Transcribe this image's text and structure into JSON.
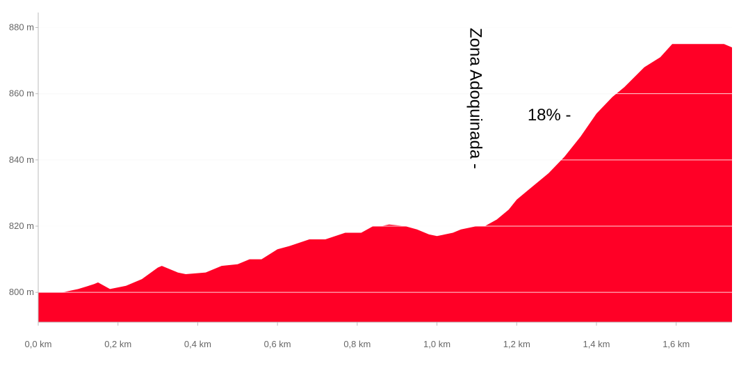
{
  "chart_data": {
    "type": "area",
    "title": "",
    "xlabel": "",
    "ylabel": "",
    "xlim": [
      0,
      1.74
    ],
    "ylim": [
      791,
      882
    ],
    "x_ticks": [
      0,
      0.2,
      0.4,
      0.6,
      0.8,
      1.0,
      1.2,
      1.4,
      1.6
    ],
    "x_tick_labels": [
      "0,0 km",
      "0,2 km",
      "0,4 km",
      "0,6 km",
      "0,8 km",
      "1,0 km",
      "1,2 km",
      "1,4 km",
      "1,6 km"
    ],
    "y_ticks": [
      800,
      820,
      840,
      860,
      880
    ],
    "y_tick_labels": [
      "800 m",
      "820 m",
      "840 m",
      "860 m",
      "880 m"
    ],
    "grid": true,
    "fill_color": "#ff0026",
    "grid_color": "#e8e8e8",
    "axis_color": "#bbbbbb",
    "series": [
      {
        "x": [
          0,
          0.06,
          0.1,
          0.14,
          0.15,
          0.18,
          0.22,
          0.26,
          0.3,
          0.31,
          0.35,
          0.37,
          0.42,
          0.46,
          0.5,
          0.53,
          0.56,
          0.6,
          0.63,
          0.68,
          0.72,
          0.77,
          0.81,
          0.84,
          0.86,
          0.88,
          0.92,
          0.95,
          0.98,
          1.0,
          1.02,
          1.04,
          1.06,
          1.1,
          1.12,
          1.15,
          1.18,
          1.2,
          1.24,
          1.28,
          1.32,
          1.36,
          1.4,
          1.44,
          1.47,
          1.52,
          1.56,
          1.59,
          1.65,
          1.7,
          1.72,
          1.74
        ],
        "y": [
          800,
          800,
          801,
          802.5,
          803,
          801,
          802,
          804,
          807.5,
          808,
          806,
          805.5,
          806,
          808,
          808.5,
          810,
          810,
          813,
          814,
          816,
          816,
          818,
          818,
          820,
          820,
          820.5,
          820,
          819,
          817.5,
          817,
          817.5,
          818,
          819,
          820,
          820,
          822,
          825,
          828,
          832,
          836,
          841,
          847,
          854,
          859,
          862,
          868,
          871,
          875,
          875,
          875,
          875,
          874
        ]
      }
    ],
    "annotations": [
      {
        "text": "Zona Adoquinada -",
        "x": 1.12,
        "y": 820,
        "orientation": "vertical"
      },
      {
        "text": "18% -",
        "x": 1.38,
        "y": 854,
        "orientation": "horizontal"
      }
    ]
  }
}
